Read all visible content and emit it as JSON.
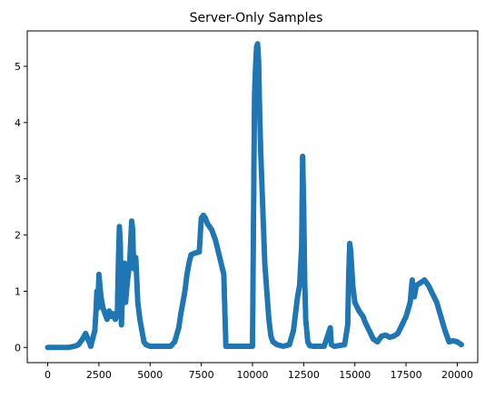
{
  "chart_data": {
    "type": "scatter",
    "title": "Server-Only Samples",
    "xlabel": "",
    "ylabel": "",
    "xlim": [
      -1000,
      21000
    ],
    "ylim": [
      -0.27,
      5.63
    ],
    "x_ticks": [
      0,
      2500,
      5000,
      7500,
      10000,
      12500,
      15000,
      17500,
      20000
    ],
    "y_ticks": [
      0,
      1,
      2,
      3,
      4,
      5
    ],
    "grid": false,
    "legend": "none",
    "marker_color": "#1f77b4",
    "series": [
      {
        "points": [
          [
            0,
            0
          ],
          [
            500,
            0
          ],
          [
            1000,
            0
          ],
          [
            1300,
            0.02
          ],
          [
            1500,
            0.05
          ],
          [
            1700,
            0.15
          ],
          [
            1850,
            0.25
          ],
          [
            2000,
            0.12
          ],
          [
            2100,
            0.02
          ],
          [
            2300,
            0.3
          ],
          [
            2350,
            0.6
          ],
          [
            2400,
            1.0
          ],
          [
            2450,
            0.7
          ],
          [
            2500,
            1.3
          ],
          [
            2550,
            1.1
          ],
          [
            2600,
            0.9
          ],
          [
            2700,
            0.7
          ],
          [
            2800,
            0.6
          ],
          [
            2900,
            0.5
          ],
          [
            3000,
            0.65
          ],
          [
            3100,
            0.55
          ],
          [
            3200,
            0.6
          ],
          [
            3300,
            0.5
          ],
          [
            3400,
            0.6
          ],
          [
            3450,
            1.5
          ],
          [
            3500,
            2.15
          ],
          [
            3550,
            1.8
          ],
          [
            3600,
            0.4
          ],
          [
            3650,
            1.0
          ],
          [
            3700,
            1.3
          ],
          [
            3750,
            1.5
          ],
          [
            3800,
            0.8
          ],
          [
            3900,
            1.2
          ],
          [
            4000,
            1.5
          ],
          [
            4100,
            2.25
          ],
          [
            4150,
            2.1
          ],
          [
            4200,
            1.4
          ],
          [
            4300,
            1.6
          ],
          [
            4400,
            0.8
          ],
          [
            4500,
            0.5
          ],
          [
            4600,
            0.3
          ],
          [
            4700,
            0.1
          ],
          [
            4800,
            0.05
          ],
          [
            5000,
            0.02
          ],
          [
            5500,
            0.02
          ],
          [
            6000,
            0.02
          ],
          [
            6200,
            0.1
          ],
          [
            6400,
            0.35
          ],
          [
            6500,
            0.6
          ],
          [
            6600,
            0.8
          ],
          [
            6700,
            1.0
          ],
          [
            6800,
            1.3
          ],
          [
            6900,
            1.5
          ],
          [
            7000,
            1.65
          ],
          [
            7200,
            1.68
          ],
          [
            7400,
            1.7
          ],
          [
            7500,
            2.3
          ],
          [
            7600,
            2.35
          ],
          [
            7700,
            2.3
          ],
          [
            7800,
            2.2
          ],
          [
            8000,
            2.1
          ],
          [
            8200,
            1.9
          ],
          [
            8400,
            1.6
          ],
          [
            8500,
            1.45
          ],
          [
            8600,
            1.3
          ],
          [
            8700,
            0.02
          ],
          [
            9000,
            0.02
          ],
          [
            9500,
            0.02
          ],
          [
            10000,
            0.02
          ],
          [
            10100,
            4.5
          ],
          [
            10150,
            5.0
          ],
          [
            10200,
            5.35
          ],
          [
            10250,
            5.4
          ],
          [
            10300,
            5.1
          ],
          [
            10350,
            4.2
          ],
          [
            10400,
            3.5
          ],
          [
            10500,
            2.5
          ],
          [
            10600,
            1.5
          ],
          [
            10700,
            1.0
          ],
          [
            10800,
            0.5
          ],
          [
            10900,
            0.2
          ],
          [
            11000,
            0.1
          ],
          [
            11200,
            0.05
          ],
          [
            11500,
            0.02
          ],
          [
            11800,
            0.05
          ],
          [
            12000,
            0.3
          ],
          [
            12100,
            0.6
          ],
          [
            12200,
            0.9
          ],
          [
            12300,
            1.1
          ],
          [
            12400,
            1.8
          ],
          [
            12450,
            3.4
          ],
          [
            12500,
            2.5
          ],
          [
            12550,
            1.2
          ],
          [
            12600,
            0.5
          ],
          [
            12700,
            0.1
          ],
          [
            12800,
            0.03
          ],
          [
            13000,
            0.02
          ],
          [
            13500,
            0.02
          ],
          [
            13800,
            0.35
          ],
          [
            13850,
            0.05
          ],
          [
            14000,
            0.02
          ],
          [
            14500,
            0.05
          ],
          [
            14650,
            0.4
          ],
          [
            14700,
            1.3
          ],
          [
            14750,
            1.85
          ],
          [
            14800,
            1.7
          ],
          [
            14900,
            1.1
          ],
          [
            15000,
            0.8
          ],
          [
            15200,
            0.65
          ],
          [
            15400,
            0.55
          ],
          [
            15500,
            0.45
          ],
          [
            15700,
            0.3
          ],
          [
            15900,
            0.15
          ],
          [
            16100,
            0.1
          ],
          [
            16300,
            0.2
          ],
          [
            16500,
            0.22
          ],
          [
            16700,
            0.18
          ],
          [
            16900,
            0.2
          ],
          [
            17100,
            0.25
          ],
          [
            17300,
            0.4
          ],
          [
            17500,
            0.55
          ],
          [
            17700,
            0.8
          ],
          [
            17800,
            1.2
          ],
          [
            17900,
            0.9
          ],
          [
            18000,
            1.1
          ],
          [
            18200,
            1.15
          ],
          [
            18400,
            1.2
          ],
          [
            18600,
            1.1
          ],
          [
            18800,
            0.95
          ],
          [
            19000,
            0.8
          ],
          [
            19200,
            0.55
          ],
          [
            19400,
            0.3
          ],
          [
            19600,
            0.1
          ],
          [
            19800,
            0.12
          ],
          [
            20000,
            0.1
          ],
          [
            20200,
            0.05
          ]
        ]
      }
    ]
  }
}
